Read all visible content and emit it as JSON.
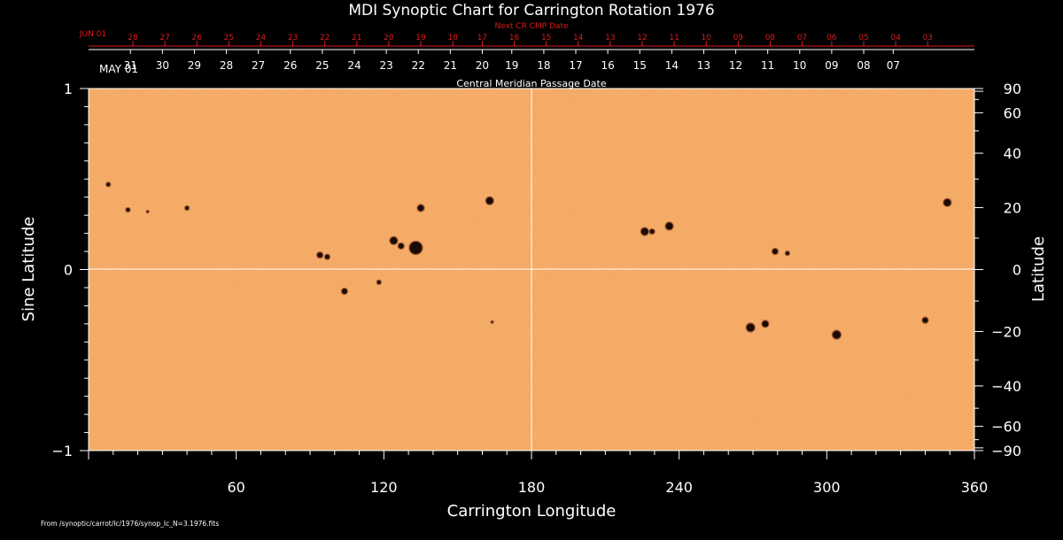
{
  "chart_data": {
    "type": "heatmap",
    "title": "MDI Synoptic Chart for Carrington Rotation 1976",
    "xlabel": "Carrington Longitude",
    "ylabel_left": "Sine Latitude",
    "ylabel_right": "Latitude",
    "xlim": [
      0,
      360
    ],
    "ylim": [
      -1,
      1
    ],
    "x_ticks": [
      60,
      120,
      180,
      240,
      300,
      360
    ],
    "y_left_ticks": [
      {
        "value": 1,
        "label": "1"
      },
      {
        "value": 0,
        "label": "0"
      },
      {
        "value": -1,
        "label": "−1"
      }
    ],
    "y_right_ticks": [
      {
        "deg": 90,
        "label": "90"
      },
      {
        "deg": 60,
        "label": "60"
      },
      {
        "deg": 40,
        "label": "40"
      },
      {
        "deg": 20,
        "label": "20"
      },
      {
        "deg": 0,
        "label": "0"
      },
      {
        "deg": -20,
        "label": "−20"
      },
      {
        "deg": -40,
        "label": "−40"
      },
      {
        "deg": -60,
        "label": "−60"
      },
      {
        "deg": -90,
        "label": "−90"
      }
    ],
    "cmp_axis": {
      "title": "Central Meridian Passage Date",
      "start_label": "MAY 01",
      "dates": [
        {
          "lon": 17,
          "label": "31"
        },
        {
          "lon": 30,
          "label": "30"
        },
        {
          "lon": 43,
          "label": "29"
        },
        {
          "lon": 56,
          "label": "28"
        },
        {
          "lon": 69,
          "label": "27"
        },
        {
          "lon": 82,
          "label": "26"
        },
        {
          "lon": 95,
          "label": "25"
        },
        {
          "lon": 108,
          "label": "24"
        },
        {
          "lon": 121,
          "label": "23"
        },
        {
          "lon": 134,
          "label": "22"
        },
        {
          "lon": 147,
          "label": "21"
        },
        {
          "lon": 160,
          "label": "20"
        },
        {
          "lon": 172,
          "label": "19"
        },
        {
          "lon": 185,
          "label": "18"
        },
        {
          "lon": 198,
          "label": "17"
        },
        {
          "lon": 211,
          "label": "16"
        },
        {
          "lon": 224,
          "label": "15"
        },
        {
          "lon": 237,
          "label": "14"
        },
        {
          "lon": 250,
          "label": "13"
        },
        {
          "lon": 263,
          "label": "12"
        },
        {
          "lon": 276,
          "label": "11"
        },
        {
          "lon": 289,
          "label": "10"
        },
        {
          "lon": 302,
          "label": "09"
        },
        {
          "lon": 315,
          "label": "08"
        },
        {
          "lon": 327,
          "label": "07"
        }
      ]
    },
    "next_cr_axis": {
      "title": "Next CR CMP Date",
      "start_label": "JUN 01",
      "dates": [
        {
          "lon": 18,
          "label": "28"
        },
        {
          "lon": 31,
          "label": "27"
        },
        {
          "lon": 44,
          "label": "26"
        },
        {
          "lon": 57,
          "label": "25"
        },
        {
          "lon": 70,
          "label": "24"
        },
        {
          "lon": 83,
          "label": "23"
        },
        {
          "lon": 96,
          "label": "22"
        },
        {
          "lon": 109,
          "label": "21"
        },
        {
          "lon": 122,
          "label": "20"
        },
        {
          "lon": 135,
          "label": "19"
        },
        {
          "lon": 148,
          "label": "18"
        },
        {
          "lon": 160,
          "label": "17"
        },
        {
          "lon": 173,
          "label": "16"
        },
        {
          "lon": 186,
          "label": "15"
        },
        {
          "lon": 199,
          "label": "14"
        },
        {
          "lon": 212,
          "label": "13"
        },
        {
          "lon": 225,
          "label": "12"
        },
        {
          "lon": 238,
          "label": "11"
        },
        {
          "lon": 251,
          "label": "10"
        },
        {
          "lon": 264,
          "label": "09"
        },
        {
          "lon": 277,
          "label": "08"
        },
        {
          "lon": 290,
          "label": "07"
        },
        {
          "lon": 302,
          "label": "06"
        },
        {
          "lon": 315,
          "label": "05"
        },
        {
          "lon": 328,
          "label": "04"
        },
        {
          "lon": 341,
          "label": "03"
        }
      ]
    },
    "sunspots": [
      {
        "lon": 8,
        "sinlat": 0.47,
        "size": 2
      },
      {
        "lon": 16,
        "sinlat": 0.33,
        "size": 2
      },
      {
        "lon": 24,
        "sinlat": 0.32,
        "size": 1
      },
      {
        "lon": 40,
        "sinlat": 0.34,
        "size": 2
      },
      {
        "lon": 94,
        "sinlat": 0.08,
        "size": 3
      },
      {
        "lon": 97,
        "sinlat": 0.07,
        "size": 2.5
      },
      {
        "lon": 104,
        "sinlat": -0.12,
        "size": 3
      },
      {
        "lon": 118,
        "sinlat": -0.07,
        "size": 2
      },
      {
        "lon": 124,
        "sinlat": 0.16,
        "size": 4
      },
      {
        "lon": 127,
        "sinlat": 0.13,
        "size": 3
      },
      {
        "lon": 133,
        "sinlat": 0.12,
        "size": 7
      },
      {
        "lon": 135,
        "sinlat": 0.34,
        "size": 3.5
      },
      {
        "lon": 163,
        "sinlat": 0.38,
        "size": 4
      },
      {
        "lon": 226,
        "sinlat": 0.21,
        "size": 4
      },
      {
        "lon": 229,
        "sinlat": 0.21,
        "size": 2.5
      },
      {
        "lon": 236,
        "sinlat": 0.24,
        "size": 4
      },
      {
        "lon": 279,
        "sinlat": 0.1,
        "size": 3
      },
      {
        "lon": 284,
        "sinlat": 0.09,
        "size": 2
      },
      {
        "lon": 269,
        "sinlat": -0.32,
        "size": 4.5
      },
      {
        "lon": 275,
        "sinlat": -0.3,
        "size": 3.5
      },
      {
        "lon": 304,
        "sinlat": -0.36,
        "size": 4.5
      },
      {
        "lon": 340,
        "sinlat": -0.28,
        "size": 3
      },
      {
        "lon": 349,
        "sinlat": 0.37,
        "size": 4
      },
      {
        "lon": 164,
        "sinlat": -0.29,
        "size": 1
      }
    ],
    "colors": {
      "background": "#000000",
      "photosphere": "#f2a25a",
      "photosphere_light": "#f6b977",
      "spot": "#1a0b05",
      "spot_edge": "#7a2c10",
      "axis": "#ffffff",
      "cr_axis": "#e01818"
    }
  },
  "footer": {
    "source": "From /synoptic/carrot/Ic/1976/synop_Ic_N=3.1976.fits"
  }
}
